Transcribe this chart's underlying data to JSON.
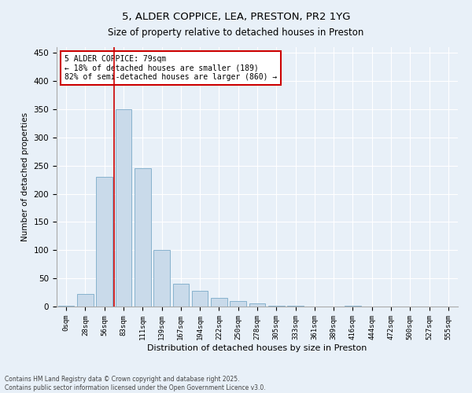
{
  "title": "5, ALDER COPPICE, LEA, PRESTON, PR2 1YG",
  "subtitle": "Size of property relative to detached houses in Preston",
  "xlabel": "Distribution of detached houses by size in Preston",
  "ylabel": "Number of detached properties",
  "bin_labels": [
    "0sqm",
    "28sqm",
    "56sqm",
    "83sqm",
    "111sqm",
    "139sqm",
    "167sqm",
    "194sqm",
    "222sqm",
    "250sqm",
    "278sqm",
    "305sqm",
    "333sqm",
    "361sqm",
    "389sqm",
    "416sqm",
    "444sqm",
    "472sqm",
    "500sqm",
    "527sqm",
    "555sqm"
  ],
  "bar_values": [
    2,
    22,
    230,
    350,
    245,
    100,
    40,
    28,
    15,
    10,
    5,
    1,
    2,
    0,
    0,
    2,
    0,
    0,
    0,
    0,
    0
  ],
  "bar_color": "#c9daea",
  "bar_edge_color": "#7aaac8",
  "ylim": [
    0,
    460
  ],
  "yticks": [
    0,
    50,
    100,
    150,
    200,
    250,
    300,
    350,
    400,
    450
  ],
  "vline_x_index": 2.5,
  "vline_color": "#cc0000",
  "annotation_text": "5 ALDER COPPICE: 79sqm\n← 18% of detached houses are smaller (189)\n82% of semi-detached houses are larger (860) →",
  "annotation_box_facecolor": "#ffffff",
  "annotation_box_edgecolor": "#cc0000",
  "footer_line1": "Contains HM Land Registry data © Crown copyright and database right 2025.",
  "footer_line2": "Contains public sector information licensed under the Open Government Licence v3.0.",
  "background_color": "#e8f0f8"
}
